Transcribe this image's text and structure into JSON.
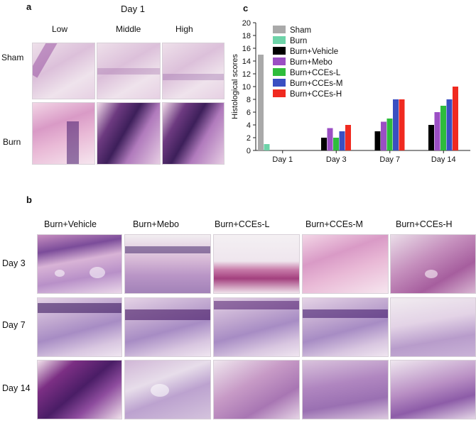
{
  "panel_a": {
    "letter": "a",
    "day_label": "Day 1",
    "columns": [
      "Low",
      "Middle",
      "High"
    ],
    "rows": [
      "Sham",
      "Burn"
    ]
  },
  "panel_b": {
    "letter": "b",
    "columns": [
      "Burn+Vehicle",
      "Burn+Mebo",
      "Burn+CCEs-L",
      "Burn+CCEs-M",
      "Burn+CCEs-H"
    ],
    "rows": [
      "Day 3",
      "Day 7",
      "Day 14"
    ]
  },
  "panel_c": {
    "letter": "c"
  },
  "chart_data": {
    "type": "bar",
    "title": "",
    "xlabel": "",
    "ylabel": "Histological scores",
    "ylim": [
      0,
      20
    ],
    "yticks": [
      "0",
      "2",
      "4",
      "6",
      "8",
      "10",
      "12",
      "14",
      "16",
      "18",
      "20"
    ],
    "categories": [
      "Day 1",
      "Day 3",
      "Day 7",
      "Day 14"
    ],
    "legend_position": "top-left-inside",
    "grid": false,
    "series": [
      {
        "name": "Sham",
        "color": "#a9a9a9",
        "values": [
          15,
          null,
          null,
          null
        ]
      },
      {
        "name": "Burn",
        "color": "#6dd3a8",
        "values": [
          1,
          null,
          null,
          null
        ]
      },
      {
        "name": "Burn+Vehicle",
        "color": "#000000",
        "values": [
          null,
          2,
          3,
          4
        ]
      },
      {
        "name": "Burn+Mebo",
        "color": "#9b4fc4",
        "values": [
          null,
          3.5,
          4.5,
          6
        ]
      },
      {
        "name": "Burn+CCEs-L",
        "color": "#2ebd3c",
        "values": [
          null,
          2,
          5,
          7
        ]
      },
      {
        "name": "Burn+CCEs-M",
        "color": "#3a4fc2",
        "values": [
          null,
          3,
          8,
          8
        ]
      },
      {
        "name": "Burn+CCEs-H",
        "color": "#f02a20",
        "values": [
          null,
          4,
          8,
          10
        ]
      }
    ]
  }
}
